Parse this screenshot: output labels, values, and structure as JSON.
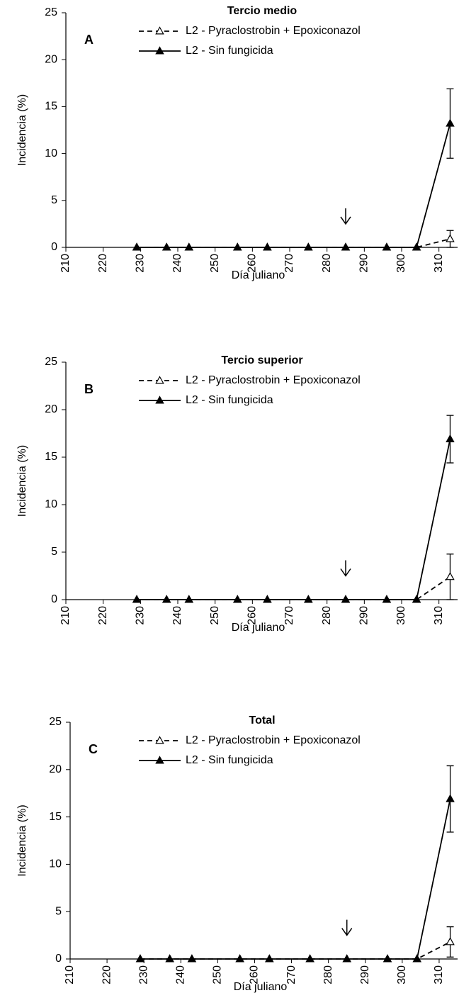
{
  "chart_data": [
    {
      "type": "line",
      "title": "Tercio medio",
      "label": "A",
      "xlabel": "Día juliano",
      "ylabel": "Incidencia (%)",
      "xlim": [
        210,
        315
      ],
      "xticks": [
        210,
        220,
        230,
        240,
        250,
        260,
        270,
        280,
        290,
        300,
        310
      ],
      "ylim": [
        0,
        25
      ],
      "yticks": [
        0,
        5,
        10,
        15,
        20,
        25
      ],
      "x": [
        229,
        237,
        243,
        256,
        264,
        275,
        285,
        296,
        304,
        313
      ],
      "arrow": {
        "x": 285,
        "y": 2.5
      },
      "series": [
        {
          "name": "L2 - Pyraclostrobin + Epoxiconazol",
          "color": "#000000",
          "dashed": true,
          "marker_fill": "#ffffff",
          "values": [
            0,
            0,
            0,
            0,
            0,
            0,
            0,
            0,
            0,
            0.9
          ],
          "errors": [
            null,
            null,
            null,
            null,
            null,
            null,
            null,
            null,
            null,
            0.9
          ]
        },
        {
          "name": "L2 - Sin fungicida",
          "color": "#000000",
          "dashed": false,
          "marker_fill": "#000000",
          "values": [
            0,
            0,
            0,
            0,
            0,
            0,
            0,
            0,
            0,
            13.2
          ],
          "errors": [
            null,
            null,
            null,
            null,
            null,
            null,
            null,
            null,
            null,
            3.7
          ]
        }
      ]
    },
    {
      "type": "line",
      "title": "Tercio superior",
      "label": "B",
      "xlabel": "Día juliano",
      "ylabel": "Incidencia (%)",
      "xlim": [
        210,
        315
      ],
      "xticks": [
        210,
        220,
        230,
        240,
        250,
        260,
        270,
        280,
        290,
        300,
        310
      ],
      "ylim": [
        0,
        25
      ],
      "yticks": [
        0,
        5,
        10,
        15,
        20,
        25
      ],
      "x": [
        229,
        237,
        243,
        256,
        264,
        275,
        285,
        296,
        304,
        313
      ],
      "arrow": {
        "x": 285,
        "y": 2.5
      },
      "series": [
        {
          "name": "L2 - Pyraclostrobin + Epoxiconazol",
          "color": "#000000",
          "dashed": true,
          "marker_fill": "#ffffff",
          "values": [
            0,
            0,
            0,
            0,
            0,
            0,
            0,
            0,
            0,
            2.4
          ],
          "errors": [
            null,
            null,
            null,
            null,
            null,
            null,
            null,
            null,
            null,
            2.4
          ]
        },
        {
          "name": "L2 - Sin fungicida",
          "color": "#000000",
          "dashed": false,
          "marker_fill": "#000000",
          "values": [
            0,
            0,
            0,
            0,
            0,
            0,
            0,
            0,
            0,
            16.9
          ],
          "errors": [
            null,
            null,
            null,
            null,
            null,
            null,
            null,
            null,
            null,
            2.5
          ]
        }
      ]
    },
    {
      "type": "line",
      "title": "Total",
      "label": "C",
      "xlabel": "Día juliano",
      "ylabel": "Incidencia (%)",
      "xlim": [
        210,
        315
      ],
      "xticks": [
        210,
        220,
        230,
        240,
        250,
        260,
        270,
        280,
        290,
        300,
        310
      ],
      "ylim": [
        0,
        25
      ],
      "yticks": [
        0,
        5,
        10,
        15,
        20,
        25
      ],
      "x": [
        229,
        237,
        243,
        256,
        264,
        275,
        285,
        296,
        304,
        313
      ],
      "arrow": {
        "x": 285,
        "y": 2.5
      },
      "series": [
        {
          "name": "L2 - Pyraclostrobin + Epoxiconazol",
          "color": "#000000",
          "dashed": true,
          "marker_fill": "#ffffff",
          "values": [
            0,
            0,
            0,
            0,
            0,
            0,
            0,
            0,
            0,
            1.8
          ],
          "errors": [
            null,
            null,
            null,
            null,
            null,
            null,
            null,
            null,
            null,
            1.6
          ]
        },
        {
          "name": "L2 - Sin fungicida",
          "color": "#000000",
          "dashed": false,
          "marker_fill": "#000000",
          "values": [
            0,
            0,
            0,
            0,
            0,
            0,
            0,
            0,
            0,
            16.9
          ],
          "errors": [
            null,
            null,
            null,
            null,
            null,
            null,
            null,
            null,
            null,
            3.5
          ]
        }
      ]
    }
  ]
}
